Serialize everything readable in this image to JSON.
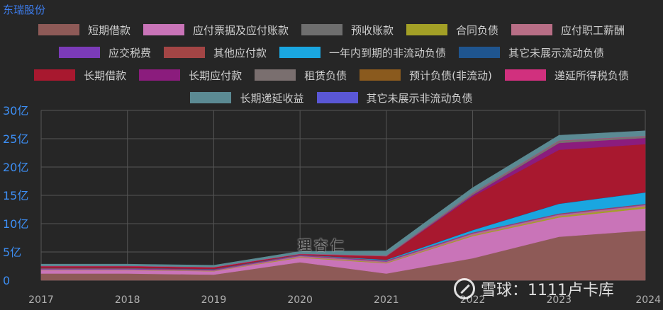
{
  "company": "东瑞股份",
  "watermark": {
    "logo_text": "理杏仁",
    "site_text": "雪球：1111卢卡库"
  },
  "chart_data": {
    "type": "area",
    "stacked": true,
    "x": [
      "2017",
      "2018",
      "2019",
      "2020",
      "2021",
      "2022",
      "2023",
      "2024"
    ],
    "ylim": [
      0,
      30
    ],
    "yticks": [
      {
        "value": 0,
        "label": "0"
      },
      {
        "value": 5,
        "label": "5亿"
      },
      {
        "value": 10,
        "label": "10亿"
      },
      {
        "value": 15,
        "label": "15亿"
      },
      {
        "value": 20,
        "label": "20亿"
      },
      {
        "value": 25,
        "label": "25亿"
      },
      {
        "value": 30,
        "label": "30亿"
      }
    ],
    "grid": true,
    "legend_position": "top",
    "series": [
      {
        "name": "短期借款",
        "color": "#8e5a57",
        "values": [
          1.2,
          1.2,
          1.0,
          3.2,
          1.2,
          3.9,
          7.7,
          8.8
        ]
      },
      {
        "name": "应付票据及应付账款",
        "color": "#c974b8",
        "values": [
          0.6,
          0.6,
          0.6,
          0.8,
          1.8,
          3.9,
          3.4,
          3.9
        ]
      },
      {
        "name": "预收账款",
        "color": "#6e6e6e",
        "values": [
          0,
          0,
          0,
          0,
          0,
          0,
          0,
          0
        ]
      },
      {
        "name": "合同负债",
        "color": "#a3a026",
        "values": [
          0.05,
          0.05,
          0.05,
          0.1,
          0.1,
          0.15,
          0.2,
          0.3
        ]
      },
      {
        "name": "应付职工薪酬",
        "color": "#b86e86",
        "values": [
          0.1,
          0.1,
          0.1,
          0.2,
          0.2,
          0.3,
          0.3,
          0.3
        ]
      },
      {
        "name": "应交税费",
        "color": "#7b3bb8",
        "values": [
          0.1,
          0.1,
          0.1,
          0.1,
          0.1,
          0.1,
          0.1,
          0.1
        ]
      },
      {
        "name": "其他应付款",
        "color": "#a34545",
        "values": [
          0.1,
          0.1,
          0.1,
          0.1,
          0.1,
          0.1,
          0.1,
          0.1
        ]
      },
      {
        "name": "一年内到期的非流动负债",
        "color": "#1aa6e0",
        "values": [
          0,
          0,
          0,
          0,
          0.1,
          0.4,
          1.7,
          2.0
        ]
      },
      {
        "name": "其它未展示流动负债",
        "color": "#1f558f",
        "values": [
          0.05,
          0.05,
          0.05,
          0.05,
          0.05,
          0.05,
          0.05,
          0.05
        ]
      },
      {
        "name": "长期借款",
        "color": "#a8182f",
        "values": [
          0.3,
          0.3,
          0.3,
          0.1,
          0.6,
          5.9,
          9.5,
          8.5
        ]
      },
      {
        "name": "长期应付款",
        "color": "#8b1c7d",
        "values": [
          0,
          0,
          0,
          0,
          0,
          0.3,
          1.2,
          1.1
        ]
      },
      {
        "name": "租赁负债",
        "color": "#7a6f6f",
        "values": [
          0,
          0,
          0,
          0,
          0.1,
          0.3,
          0.4,
          0.3
        ]
      },
      {
        "name": "预计负债(非流动)",
        "color": "#8a5a1e",
        "values": [
          0,
          0,
          0,
          0,
          0,
          0,
          0,
          0
        ]
      },
      {
        "name": "递延所得税负债",
        "color": "#d1307e",
        "values": [
          0.05,
          0.05,
          0.05,
          0.05,
          0.05,
          0.05,
          0.05,
          0.05
        ]
      },
      {
        "name": "长期递延收益",
        "color": "#5b8a93",
        "values": [
          0.3,
          0.3,
          0.3,
          0.4,
          0.8,
          0.9,
          0.9,
          0.9
        ]
      },
      {
        "name": "其它未展示非流动负债",
        "color": "#5a57d6",
        "values": [
          0,
          0,
          0,
          0,
          0,
          0,
          0,
          0
        ]
      }
    ]
  }
}
